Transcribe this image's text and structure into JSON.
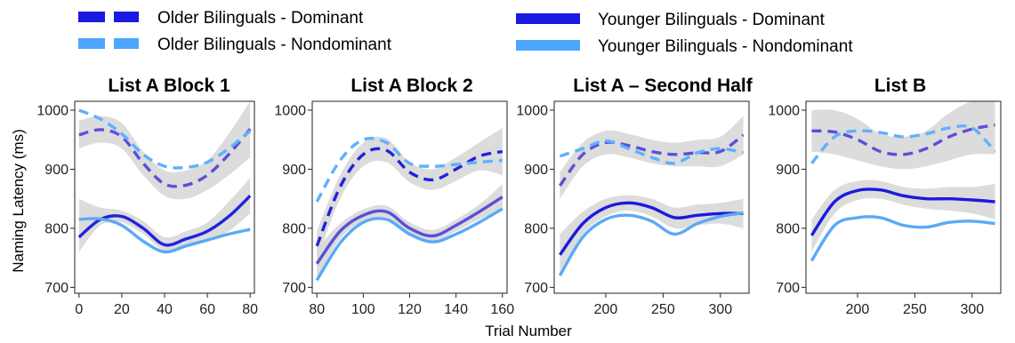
{
  "chart_data": {
    "type": "line",
    "xlabel": "Trial Number",
    "ylabel": "Naming Latency (ms)",
    "legend": {
      "placement": "top",
      "entries": [
        {
          "label": "Older Bilinguals - Dominant",
          "style": "dashed",
          "color": "#1a1ae0"
        },
        {
          "label": "Older Bilinguals - Nondominant",
          "style": "dashed",
          "color": "#4da6ff"
        },
        {
          "label": "Younger Bilinguals - Dominant",
          "style": "solid",
          "color": "#1a1ae0"
        },
        {
          "label": "Younger Bilinguals - Nondominant",
          "style": "solid",
          "color": "#4da6ff"
        }
      ]
    },
    "panels": [
      {
        "title": "List A Block 1",
        "xlim": [
          -2,
          82
        ],
        "ylim": [
          690,
          1015
        ],
        "xticks": [
          0,
          20,
          40,
          60,
          80
        ],
        "yticks": [
          700,
          800,
          900,
          1000
        ],
        "band_color": "#d6d6d6",
        "series": [
          {
            "x": [
              0,
              10,
              20,
              30,
              40,
              50,
              60,
              70,
              80
            ],
            "y": [
              958,
              967,
              955,
              910,
              875,
              873,
              890,
              925,
              968
            ],
            "lo": [
              935,
              945,
              935,
              890,
              855,
              850,
              865,
              890,
              920
            ],
            "hi": [
              982,
              990,
              978,
              930,
              898,
              898,
              915,
              960,
              1015
            ],
            "color": "#5a4fd8",
            "dashed": true
          },
          {
            "x": [
              0,
              10,
              20,
              30,
              40,
              50,
              60,
              70,
              80
            ],
            "y": [
              1000,
              985,
              960,
              925,
              905,
              903,
              912,
              935,
              965
            ],
            "color": "#5fb0ff",
            "dashed": true
          },
          {
            "x": [
              0,
              10,
              20,
              30,
              40,
              50,
              60,
              70,
              80
            ],
            "y": [
              785,
              815,
              820,
              800,
              772,
              782,
              795,
              820,
              855
            ],
            "lo": [
              760,
              805,
              810,
              790,
              762,
              770,
              780,
              795,
              825
            ],
            "hi": [
              850,
              835,
              830,
              812,
              785,
              795,
              810,
              845,
              885
            ],
            "color": "#2222e0",
            "dashed": false
          },
          {
            "x": [
              0,
              10,
              20,
              30,
              40,
              50,
              60,
              70,
              80
            ],
            "y": [
              815,
              816,
              805,
              778,
              760,
              770,
              780,
              790,
              798
            ],
            "color": "#5aaaf5",
            "dashed": false
          }
        ]
      },
      {
        "title": "List A Block 2",
        "xlim": [
          78,
          162
        ],
        "ylim": [
          690,
          1015
        ],
        "xticks": [
          80,
          100,
          120,
          140,
          160
        ],
        "yticks": [
          700,
          800,
          900,
          1000
        ],
        "band_color": "#d6d6d6",
        "series": [
          {
            "x": [
              80,
              90,
              100,
              110,
              120,
              130,
              140,
              150,
              160
            ],
            "y": [
              770,
              870,
              925,
              932,
              895,
              882,
              900,
              922,
              930
            ],
            "lo": [
              745,
              850,
              905,
              912,
              878,
              865,
              880,
              898,
              890
            ],
            "hi": [
              795,
              890,
              945,
              952,
              912,
              900,
              920,
              945,
              970
            ],
            "color": "#2222d8",
            "dashed": true
          },
          {
            "x": [
              80,
              90,
              100,
              110,
              120,
              130,
              140,
              150,
              160
            ],
            "y": [
              845,
              915,
              950,
              945,
              910,
              905,
              908,
              912,
              915
            ],
            "color": "#5fb0ff",
            "dashed": true
          },
          {
            "x": [
              80,
              90,
              100,
              110,
              120,
              130,
              140,
              150,
              160
            ],
            "y": [
              740,
              795,
              822,
              828,
              800,
              787,
              805,
              828,
              853
            ],
            "lo": [
              715,
              782,
              812,
              818,
              790,
              778,
              795,
              815,
              830
            ],
            "hi": [
              765,
              808,
              832,
              838,
              810,
              797,
              815,
              840,
              875
            ],
            "color": "#5a4fd8",
            "dashed": false
          },
          {
            "x": [
              80,
              90,
              100,
              110,
              120,
              130,
              140,
              150,
              160
            ],
            "y": [
              712,
              775,
              810,
              815,
              790,
              777,
              790,
              810,
              833
            ],
            "color": "#5aaaf5",
            "dashed": false
          }
        ]
      },
      {
        "title": "List A – Second Half",
        "xlim": [
          155,
          325
        ],
        "ylim": [
          690,
          1015
        ],
        "xticks": [
          200,
          250,
          300
        ],
        "yticks": [
          700,
          800,
          900,
          1000
        ],
        "band_color": "#d6d6d6",
        "series": [
          {
            "x": [
              160,
              180,
              200,
              220,
              240,
              260,
              280,
              300,
              320
            ],
            "y": [
              872,
              925,
              945,
              940,
              930,
              925,
              928,
              930,
              958
            ],
            "lo": [
              850,
              905,
              925,
              920,
              910,
              905,
              905,
              905,
              925
            ],
            "hi": [
              895,
              945,
              965,
              960,
              950,
              945,
              950,
              955,
              990
            ],
            "color": "#5a4fd8",
            "dashed": true
          },
          {
            "x": [
              160,
              180,
              200,
              220,
              240,
              260,
              280,
              300,
              320
            ],
            "y": [
              922,
              935,
              948,
              935,
              920,
              910,
              928,
              935,
              928
            ],
            "color": "#5fb0ff",
            "dashed": true
          },
          {
            "x": [
              160,
              180,
              200,
              220,
              240,
              260,
              280,
              300,
              320
            ],
            "y": [
              755,
              808,
              835,
              843,
              835,
              818,
              822,
              825,
              825
            ],
            "lo": [
              720,
              790,
              820,
              830,
              820,
              800,
              805,
              808,
              800
            ],
            "hi": [
              790,
              828,
              850,
              856,
              850,
              835,
              840,
              843,
              850
            ],
            "color": "#1a1ae0",
            "dashed": false
          },
          {
            "x": [
              160,
              180,
              200,
              220,
              240,
              260,
              280,
              300,
              320
            ],
            "y": [
              720,
              785,
              815,
              822,
              812,
              790,
              808,
              820,
              826
            ],
            "color": "#5aaaf5",
            "dashed": false
          }
        ]
      },
      {
        "title": "List B",
        "xlim": [
          155,
          325
        ],
        "ylim": [
          690,
          1015
        ],
        "xticks": [
          200,
          250,
          300
        ],
        "yticks": [
          700,
          800,
          900,
          1000
        ],
        "band_color": "#d6d6d6",
        "series": [
          {
            "x": [
              160,
              180,
              200,
              220,
              240,
              260,
              280,
              300,
              320
            ],
            "y": [
              965,
              963,
              950,
              930,
              925,
              935,
              955,
              968,
              975
            ],
            "lo": [
              930,
              925,
              915,
              905,
              900,
              905,
              915,
              925,
              925
            ],
            "hi": [
              1000,
              1000,
              985,
              960,
              955,
              965,
              995,
              1015,
              1015
            ],
            "color": "#5a4fd8",
            "dashed": true
          },
          {
            "x": [
              160,
              180,
              200,
              220,
              240,
              260,
              280,
              300,
              320
            ],
            "y": [
              910,
              955,
              965,
              962,
              955,
              960,
              970,
              970,
              930
            ],
            "color": "#5fb0ff",
            "dashed": true
          },
          {
            "x": [
              160,
              180,
              200,
              220,
              240,
              260,
              280,
              300,
              320
            ],
            "y": [
              788,
              845,
              864,
              865,
              855,
              850,
              850,
              848,
              845
            ],
            "lo": [
              760,
              825,
              848,
              850,
              840,
              833,
              830,
              825,
              815
            ],
            "hi": [
              815,
              865,
              880,
              880,
              870,
              867,
              870,
              870,
              875
            ],
            "color": "#1a1ae0",
            "dashed": false
          },
          {
            "x": [
              160,
              180,
              200,
              220,
              240,
              260,
              280,
              300,
              320
            ],
            "y": [
              745,
              805,
              818,
              818,
              805,
              802,
              810,
              812,
              808
            ],
            "color": "#5aaaf5",
            "dashed": false
          }
        ]
      }
    ]
  }
}
